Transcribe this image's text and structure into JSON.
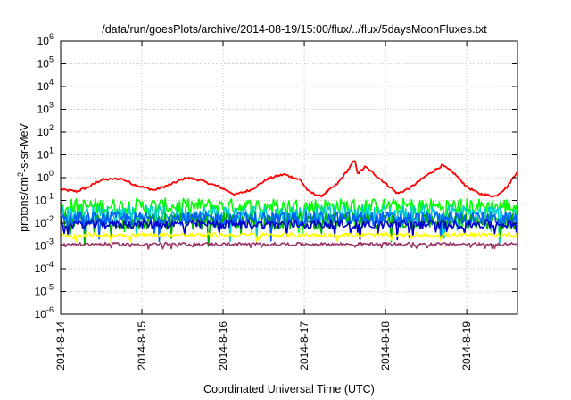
{
  "chart_data": {
    "type": "line",
    "title": "/data/run/goesPlots/archive/2014-08-19/15:00/flux/../flux/5daysMoonFluxes.txt",
    "xlabel": "Coordinated Universal Time (UTC)",
    "ylabel": {
      "base": "protons/cm",
      "sup": "2",
      "rest": "-s-sr-MeV"
    },
    "xlim": [
      "2014-08-14 00:00",
      "2014-08-19 15:00"
    ],
    "y_scale": "log",
    "ylim": [
      1e-06,
      1000000.0
    ],
    "grid": true,
    "legend": "none",
    "x_ticks": [
      "2014-8-14",
      "2014-8-15",
      "2014-8-16",
      "2014-8-17",
      "2014-8-18",
      "2014-8-19"
    ],
    "y_ticks": [
      {
        "base": "10",
        "exp": "-6"
      },
      {
        "base": "10",
        "exp": "-5"
      },
      {
        "base": "10",
        "exp": "-4"
      },
      {
        "base": "10",
        "exp": "-3"
      },
      {
        "base": "10",
        "exp": "-2"
      },
      {
        "base": "10",
        "exp": "-1"
      },
      {
        "base": "10",
        "exp": "0"
      },
      {
        "base": "10",
        "exp": "1"
      },
      {
        "base": "10",
        "exp": "2"
      },
      {
        "base": "10",
        "exp": "3"
      },
      {
        "base": "10",
        "exp": "4"
      },
      {
        "base": "10",
        "exp": "5"
      },
      {
        "base": "10",
        "exp": "6"
      }
    ],
    "series": [
      {
        "color": "#ff0000",
        "x_days": [
          0,
          0.2,
          0.35,
          0.5,
          0.75,
          0.9,
          1.15,
          1.35,
          1.55,
          1.7,
          1.95,
          2.15,
          2.35,
          2.55,
          2.75,
          2.95,
          3.05,
          3.2,
          3.4,
          3.55,
          3.62,
          3.66,
          3.75,
          3.95,
          4.15,
          4.3,
          4.5,
          4.7,
          4.85,
          5.0,
          5.15,
          5.35,
          5.5,
          5.625
        ],
        "values": [
          0.3,
          0.25,
          0.4,
          0.8,
          0.9,
          0.5,
          0.28,
          0.5,
          1.0,
          0.8,
          0.4,
          0.18,
          0.3,
          0.9,
          1.4,
          0.8,
          0.25,
          0.15,
          0.5,
          2.5,
          6.0,
          1.5,
          3.0,
          0.8,
          0.2,
          0.35,
          1.2,
          3.5,
          1.5,
          0.4,
          0.2,
          0.15,
          0.4,
          2.0
        ],
        "noise": 0.1
      },
      {
        "color": "#00ff00",
        "baseline": 0.055,
        "noise": 0.35
      },
      {
        "color": "#00cccc",
        "baseline": 0.025,
        "noise": 0.4
      },
      {
        "color": "#00b000",
        "baseline": 0.012,
        "noise": 0.35
      },
      {
        "color": "#0060ff",
        "baseline": 0.016,
        "noise": 0.3
      },
      {
        "color": "#0000cc",
        "baseline": 0.009,
        "noise": 0.2
      },
      {
        "color": "#ffff00",
        "baseline": 0.003,
        "noise": 0.1
      },
      {
        "color": "#993366",
        "baseline": 0.0012,
        "noise": 0.07
      }
    ]
  }
}
